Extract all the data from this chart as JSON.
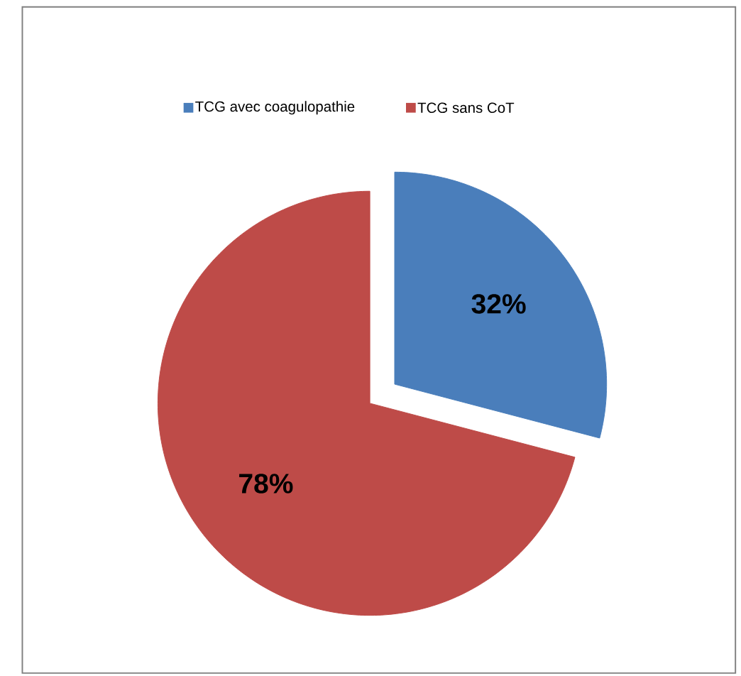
{
  "chart_data": {
    "type": "pie",
    "categories": [
      "TCG avec coagulopathie",
      "TCG sans CoT"
    ],
    "values": [
      32,
      78
    ],
    "colors": [
      "#4a7ebb",
      "#be4b48"
    ],
    "value_labels": [
      "32%",
      "78%"
    ],
    "legend": "top"
  }
}
